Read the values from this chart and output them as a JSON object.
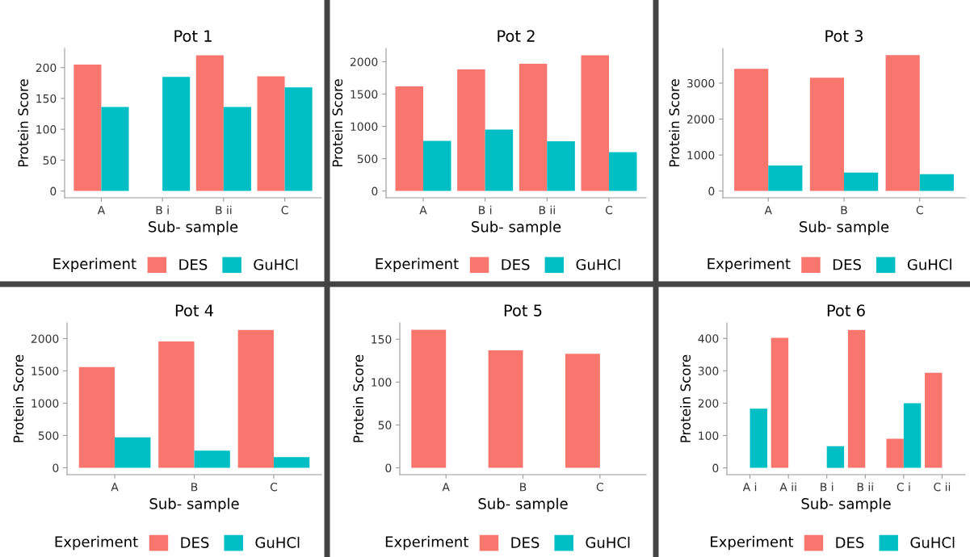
{
  "chart_data": [
    {
      "type": "bar",
      "title": "Pot 1",
      "xlabel": "Sub- sample",
      "ylabel": "Protein Score",
      "legend_title": "Experiment",
      "legend": "bottom",
      "grid": false,
      "categories": [
        "A",
        "B i",
        "B ii",
        "C"
      ],
      "ylim": [
        -11,
        231
      ],
      "yticks": [
        0,
        50,
        100,
        150,
        200
      ],
      "series": [
        {
          "name": "DES",
          "color": "#f8766d",
          "values": [
            205,
            null,
            220,
            186
          ]
        },
        {
          "name": "GuHCl",
          "color": "#00bfc4",
          "values": [
            136,
            185,
            136,
            168
          ]
        }
      ]
    },
    {
      "type": "bar",
      "title": "Pot 2",
      "xlabel": "Sub- sample",
      "ylabel": "Protein Score",
      "legend_title": "Experiment",
      "legend": "bottom",
      "grid": false,
      "categories": [
        "A",
        "B i",
        "B ii",
        "C"
      ],
      "ylim": [
        -105,
        2206
      ],
      "yticks": [
        0,
        500,
        1000,
        1500,
        2000
      ],
      "series": [
        {
          "name": "DES",
          "color": "#f8766d",
          "values": [
            1620,
            1880,
            1970,
            2100
          ]
        },
        {
          "name": "GuHCl",
          "color": "#00bfc4",
          "values": [
            775,
            950,
            770,
            600
          ]
        }
      ]
    },
    {
      "type": "bar",
      "title": "Pot 3",
      "xlabel": "Sub- sample",
      "ylabel": "Protein Score",
      "legend_title": "Experiment",
      "legend": "bottom",
      "grid": false,
      "categories": [
        "A",
        "B",
        "C"
      ],
      "ylim": [
        -189,
        3965
      ],
      "yticks": [
        0,
        1000,
        2000,
        3000
      ],
      "series": [
        {
          "name": "DES",
          "color": "#f8766d",
          "values": [
            3400,
            3150,
            3780
          ]
        },
        {
          "name": "GuHCl",
          "color": "#00bfc4",
          "values": [
            710,
            510,
            470
          ]
        }
      ]
    },
    {
      "type": "bar",
      "title": "Pot 4",
      "xlabel": "Sub- sample",
      "ylabel": "Protein Score",
      "legend_title": "Experiment",
      "legend": "bottom",
      "grid": false,
      "categories": [
        "A",
        "B",
        "C"
      ],
      "ylim": [
        -107,
        2243
      ],
      "yticks": [
        0,
        500,
        1000,
        1500,
        2000
      ],
      "series": [
        {
          "name": "DES",
          "color": "#f8766d",
          "values": [
            1560,
            1955,
            2135
          ]
        },
        {
          "name": "GuHCl",
          "color": "#00bfc4",
          "values": [
            470,
            265,
            165
          ]
        }
      ]
    },
    {
      "type": "bar",
      "title": "Pot 5",
      "xlabel": "Sub- sample",
      "ylabel": "Protein Score",
      "legend_title": "Experiment",
      "legend": "bottom",
      "grid": false,
      "categories": [
        "A",
        "B",
        "C"
      ],
      "ylim": [
        -8,
        169
      ],
      "yticks": [
        0,
        50,
        100,
        150
      ],
      "series": [
        {
          "name": "DES",
          "color": "#f8766d",
          "values": [
            161,
            137,
            133
          ]
        },
        {
          "name": "GuHCl",
          "color": "#00bfc4",
          "values": [
            null,
            null,
            null
          ]
        }
      ]
    },
    {
      "type": "bar",
      "title": "Pot 6",
      "xlabel": "Sub- sample",
      "ylabel": "Protein Score",
      "legend_title": "Experiment",
      "legend": "bottom",
      "grid": false,
      "categories": [
        "A i",
        "A ii",
        "B i",
        "B ii",
        "C i",
        "C ii"
      ],
      "ylim": [
        -21,
        448
      ],
      "yticks": [
        0,
        100,
        200,
        300,
        400
      ],
      "series": [
        {
          "name": "DES",
          "color": "#f8766d",
          "values": [
            null,
            402,
            null,
            426,
            90,
            294
          ]
        },
        {
          "name": "GuHCl",
          "color": "#00bfc4",
          "values": [
            183,
            null,
            67,
            null,
            200,
            null
          ]
        }
      ]
    }
  ]
}
